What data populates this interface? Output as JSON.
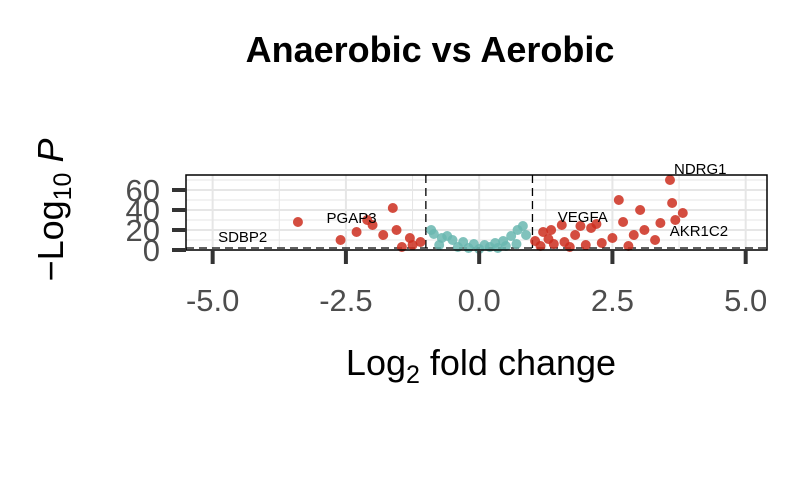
{
  "chart_data": {
    "type": "scatter",
    "title": "Anaerobic vs Aerobic",
    "xlabel": "Log2 fold change",
    "ylabel": "-Log10 P",
    "xlim": [
      -5.5,
      5.4
    ],
    "ylim": [
      0,
      75
    ],
    "x_ticks": [
      "-5.0",
      "-2.5",
      "0.0",
      "2.5",
      "5.0"
    ],
    "y_ticks": [
      "0",
      "20",
      "40",
      "60"
    ],
    "grid": true,
    "fc_cutoff": 1,
    "p_cutoff": 2,
    "colors": {
      "significant": "#cd2e1f",
      "nonsignificant": "#6ab7b0",
      "grid": "#e6e6e6"
    },
    "series": [
      {
        "points": [
          [
            3.58,
            70
          ],
          [
            2.62,
            50
          ],
          [
            3.62,
            47
          ],
          [
            3.02,
            40
          ],
          [
            3.82,
            37
          ],
          [
            3.68,
            30
          ],
          [
            3.4,
            27
          ],
          [
            2.2,
            26
          ],
          [
            2.7,
            28
          ],
          [
            1.9,
            24
          ],
          [
            1.55,
            25
          ],
          [
            2.1,
            22
          ],
          [
            1.2,
            18
          ],
          [
            1.35,
            20
          ],
          [
            1.8,
            15
          ],
          [
            2.5,
            12
          ],
          [
            3.1,
            20
          ],
          [
            2.9,
            15
          ],
          [
            1.05,
            9
          ],
          [
            1.3,
            11
          ],
          [
            1.6,
            8
          ],
          [
            2.3,
            7
          ],
          [
            3.3,
            10
          ],
          [
            2.0,
            5
          ],
          [
            1.15,
            4
          ],
          [
            1.4,
            6
          ],
          [
            1.7,
            3
          ],
          [
            2.8,
            4
          ],
          [
            -1.62,
            42
          ],
          [
            -3.4,
            28
          ],
          [
            -2.1,
            30
          ],
          [
            -2.0,
            25
          ],
          [
            -1.55,
            20
          ],
          [
            -1.8,
            15
          ],
          [
            -2.3,
            18
          ],
          [
            -1.3,
            12
          ],
          [
            -1.1,
            8
          ],
          [
            -1.25,
            5
          ],
          [
            -2.6,
            10
          ],
          [
            -1.45,
            3
          ]
        ]
      },
      {
        "points": [
          [
            0.82,
            24
          ],
          [
            0.72,
            20
          ],
          [
            0.88,
            15
          ],
          [
            0.6,
            14
          ],
          [
            0.45,
            9
          ],
          [
            0.3,
            7
          ],
          [
            0.1,
            5
          ],
          [
            -0.1,
            6
          ],
          [
            -0.3,
            8
          ],
          [
            -0.5,
            10
          ],
          [
            -0.7,
            12
          ],
          [
            -0.85,
            16
          ],
          [
            -0.9,
            20
          ],
          [
            -0.6,
            14
          ],
          [
            0.2,
            3
          ],
          [
            -0.2,
            2
          ],
          [
            0.5,
            4
          ],
          [
            -0.4,
            3
          ],
          [
            0.7,
            6
          ],
          [
            -0.75,
            5
          ],
          [
            0.0,
            1
          ],
          [
            0.35,
            2
          ]
        ]
      }
    ],
    "labels": [
      {
        "text": "NDRG1",
        "x": 3.58,
        "y": 70
      },
      {
        "text": "VEGFA",
        "x": 1.4,
        "y": 22
      },
      {
        "text": "PGAP3",
        "x": -1.85,
        "y": 21
      },
      {
        "text": "AKR1C2",
        "x": 3.5,
        "y": 8
      },
      {
        "text": "SDBP2",
        "x": -3.9,
        "y": 2
      }
    ]
  }
}
